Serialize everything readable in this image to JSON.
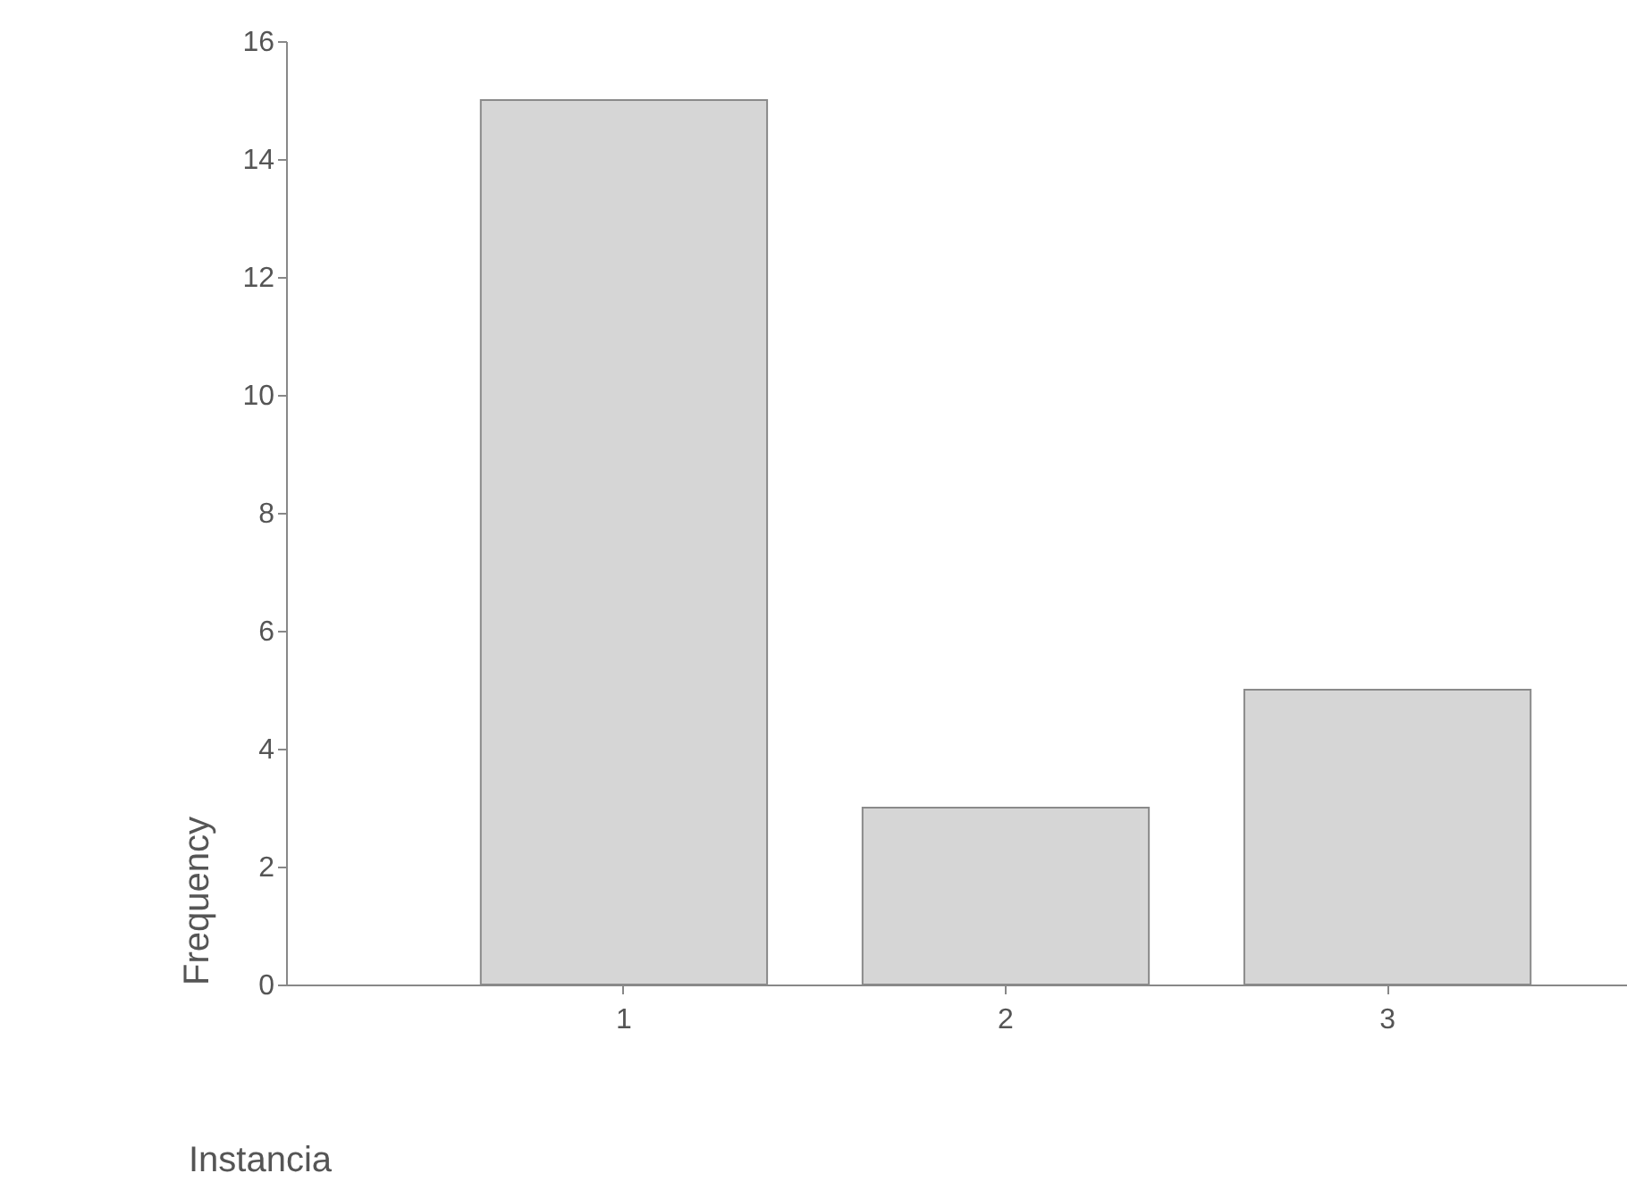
{
  "chart_data": {
    "type": "bar",
    "xlabel": "Instancia",
    "ylabel": "Frequency",
    "categories": [
      "1",
      "2",
      "3"
    ],
    "values": [
      15,
      3,
      5
    ],
    "color": "#d6d6d6",
    "ylim": [
      0,
      16
    ],
    "yticks": [
      0,
      2,
      4,
      6,
      8,
      10,
      12,
      14,
      16
    ],
    "grid": false
  }
}
